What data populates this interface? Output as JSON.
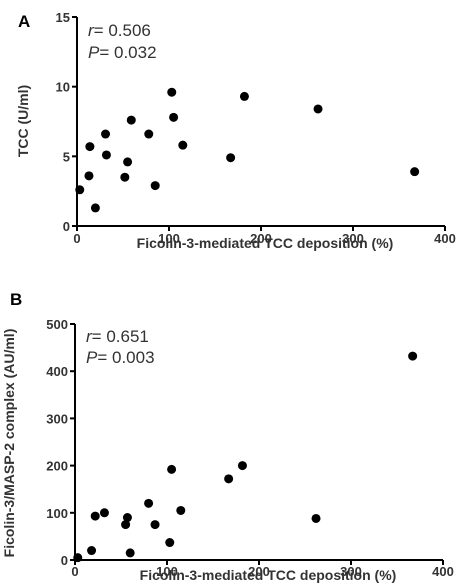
{
  "chart_data": [
    {
      "type": "scatter",
      "panel": "A",
      "ylabel": "TCC (U/ml)",
      "xlabel": "Ficolin-3-mediated TCC deposition (%)",
      "xlim": [
        0,
        400
      ],
      "ylim": [
        0,
        15
      ],
      "xticks": [
        0,
        100,
        200,
        300,
        400
      ],
      "yticks": [
        0,
        5,
        10,
        15
      ],
      "stats": {
        "r_symbol": "r",
        "r_value": "= 0.506",
        "p_symbol": "P",
        "p_value": "= 0.032"
      },
      "points": [
        {
          "x": 3,
          "y": 2.6
        },
        {
          "x": 13,
          "y": 3.6
        },
        {
          "x": 14,
          "y": 5.7
        },
        {
          "x": 20,
          "y": 1.3
        },
        {
          "x": 31,
          "y": 6.6
        },
        {
          "x": 32,
          "y": 5.1
        },
        {
          "x": 52,
          "y": 3.5
        },
        {
          "x": 55,
          "y": 4.6
        },
        {
          "x": 59,
          "y": 7.6
        },
        {
          "x": 78,
          "y": 6.6
        },
        {
          "x": 85,
          "y": 2.9
        },
        {
          "x": 103,
          "y": 9.6
        },
        {
          "x": 105,
          "y": 7.8
        },
        {
          "x": 115,
          "y": 5.8
        },
        {
          "x": 167,
          "y": 4.9
        },
        {
          "x": 182,
          "y": 9.3
        },
        {
          "x": 262,
          "y": 8.4
        },
        {
          "x": 367,
          "y": 3.9
        }
      ]
    },
    {
      "type": "scatter",
      "panel": "B",
      "ylabel": "Ficolin-3/MASP-2 complex (AU/ml)",
      "xlabel": "Ficolin-3-mediated TCC deposition (%)",
      "xlim": [
        0,
        400
      ],
      "ylim": [
        0,
        500
      ],
      "xticks": [
        0,
        100,
        200,
        300,
        400
      ],
      "yticks": [
        0,
        100,
        200,
        300,
        400,
        500
      ],
      "stats": {
        "r_symbol": "r",
        "r_value": "= 0.651",
        "p_symbol": "P",
        "p_value": "= 0.003"
      },
      "points": [
        {
          "x": 3,
          "y": 5
        },
        {
          "x": 18,
          "y": 20
        },
        {
          "x": 22,
          "y": 93
        },
        {
          "x": 32,
          "y": 100
        },
        {
          "x": 55,
          "y": 75
        },
        {
          "x": 57,
          "y": 90
        },
        {
          "x": 60,
          "y": 15
        },
        {
          "x": 80,
          "y": 120
        },
        {
          "x": 87,
          "y": 75
        },
        {
          "x": 103,
          "y": 37
        },
        {
          "x": 105,
          "y": 192
        },
        {
          "x": 115,
          "y": 105
        },
        {
          "x": 167,
          "y": 172
        },
        {
          "x": 182,
          "y": 200
        },
        {
          "x": 262,
          "y": 88
        },
        {
          "x": 367,
          "y": 432
        }
      ]
    }
  ]
}
